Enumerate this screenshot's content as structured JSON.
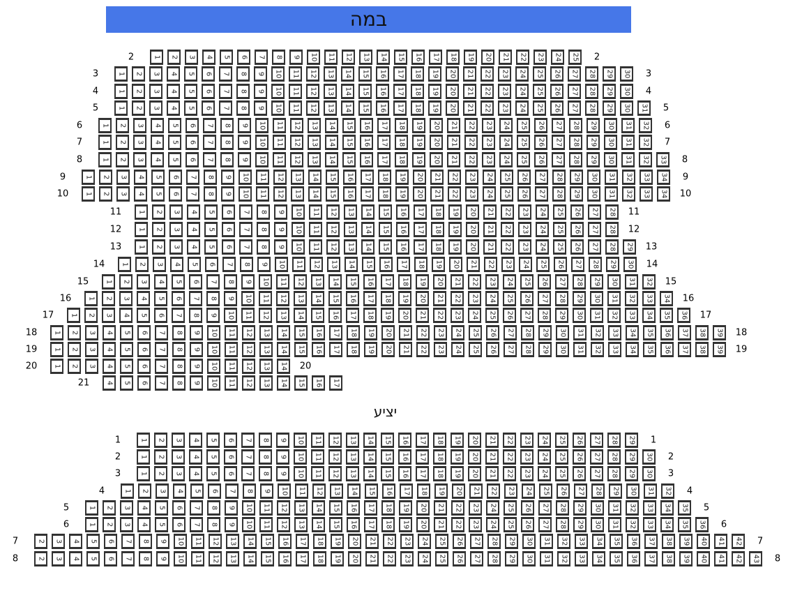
{
  "stage_label": "במה",
  "balcony_label": "יציע",
  "colors": {
    "stage": "#4677e8",
    "seat_border": "#333333"
  },
  "sections": [
    {
      "name": "main",
      "rows": [
        {
          "label": "2",
          "first": 1,
          "last": 25
        },
        {
          "label": "3",
          "first": 1,
          "last": 30
        },
        {
          "label": "4",
          "first": 1,
          "last": 30
        },
        {
          "label": "5",
          "first": 1,
          "last": 31
        },
        {
          "label": "6",
          "first": 1,
          "last": 32
        },
        {
          "label": "7",
          "first": 1,
          "last": 32
        },
        {
          "label": "8",
          "first": 1,
          "last": 33
        },
        {
          "label": "9",
          "first": 1,
          "last": 34
        },
        {
          "label": "10",
          "first": 1,
          "last": 34
        },
        {
          "label": "11",
          "first": 1,
          "last": 28
        },
        {
          "label": "12",
          "first": 1,
          "last": 28
        },
        {
          "label": "13",
          "first": 1,
          "last": 29
        },
        {
          "label": "14",
          "first": 1,
          "last": 30
        },
        {
          "label": "15",
          "first": 1,
          "last": 32
        },
        {
          "label": "16",
          "first": 1,
          "last": 34
        },
        {
          "label": "17",
          "first": 1,
          "last": 36
        },
        {
          "label": "18",
          "first": 1,
          "last": 39
        },
        {
          "label": "19",
          "first": 1,
          "last": 39
        },
        {
          "label": "20",
          "first": 1,
          "last": 14
        },
        {
          "label": "21",
          "first": 4,
          "last": 17,
          "no_right_label": true
        }
      ]
    },
    {
      "name": "balcony",
      "rows": [
        {
          "label": "1",
          "first": 1,
          "last": 29
        },
        {
          "label": "2",
          "first": 1,
          "last": 30
        },
        {
          "label": "3",
          "first": 1,
          "last": 30
        },
        {
          "label": "4",
          "first": 1,
          "last": 32
        },
        {
          "label": "5",
          "first": 1,
          "last": 35
        },
        {
          "label": "6",
          "first": 1,
          "last": 36
        },
        {
          "label": "7",
          "first": 2,
          "last": 42
        },
        {
          "label": "8",
          "first": 2,
          "last": 43
        }
      ]
    }
  ]
}
